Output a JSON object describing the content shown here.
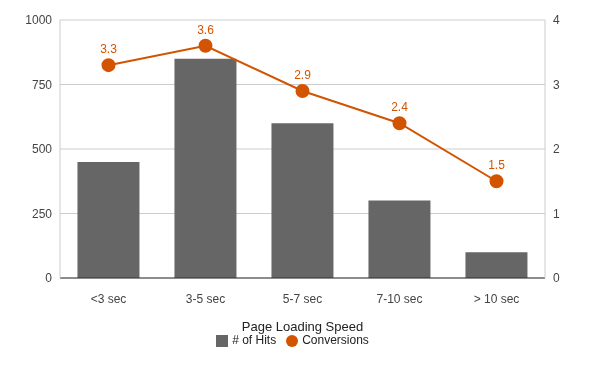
{
  "chart_data": {
    "type": "bar",
    "x_label": "Page Loading Speed",
    "categories": [
      "<3 sec",
      "3-5 sec",
      "5-7 sec",
      "7-10 sec",
      "> 10 sec"
    ],
    "series": [
      {
        "name": "# of Hits",
        "type": "bar",
        "color": "#666666",
        "values": [
          450,
          850,
          600,
          300,
          100
        ]
      },
      {
        "name": "Conversions",
        "type": "line",
        "axis": "y2",
        "color": "#d35400",
        "marker": "circle",
        "data_labels": true,
        "values": [
          3.3,
          3.6,
          2.9,
          2.4,
          1.5
        ]
      }
    ],
    "ylim": [
      0,
      1000
    ],
    "yticks": [
      0,
      250,
      500,
      750,
      1000
    ],
    "y2lim": [
      0,
      4
    ],
    "y2ticks": [
      0,
      1,
      2,
      3,
      4
    ],
    "grid": true,
    "legend": "bottom"
  }
}
